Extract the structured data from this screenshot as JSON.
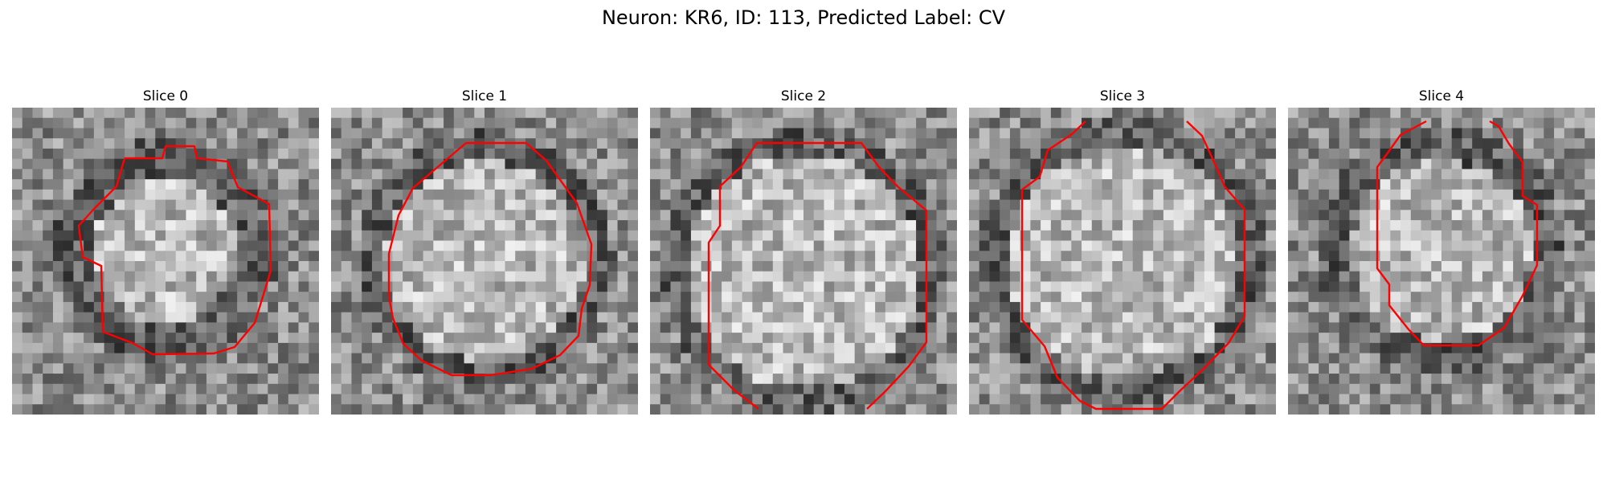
{
  "figure": {
    "title": "Neuron: KR6, ID: 113, Predicted Label: CV"
  },
  "panels": [
    {
      "title": "Slice 0"
    },
    {
      "title": "Slice 1"
    },
    {
      "title": "Slice 2"
    },
    {
      "title": "Slice 3"
    },
    {
      "title": "Slice 4"
    }
  ],
  "colors": {
    "contour": "#ff0000",
    "background": "#ffffff"
  },
  "image_style": {
    "colormap": "grayscale",
    "grid_size": 30
  }
}
